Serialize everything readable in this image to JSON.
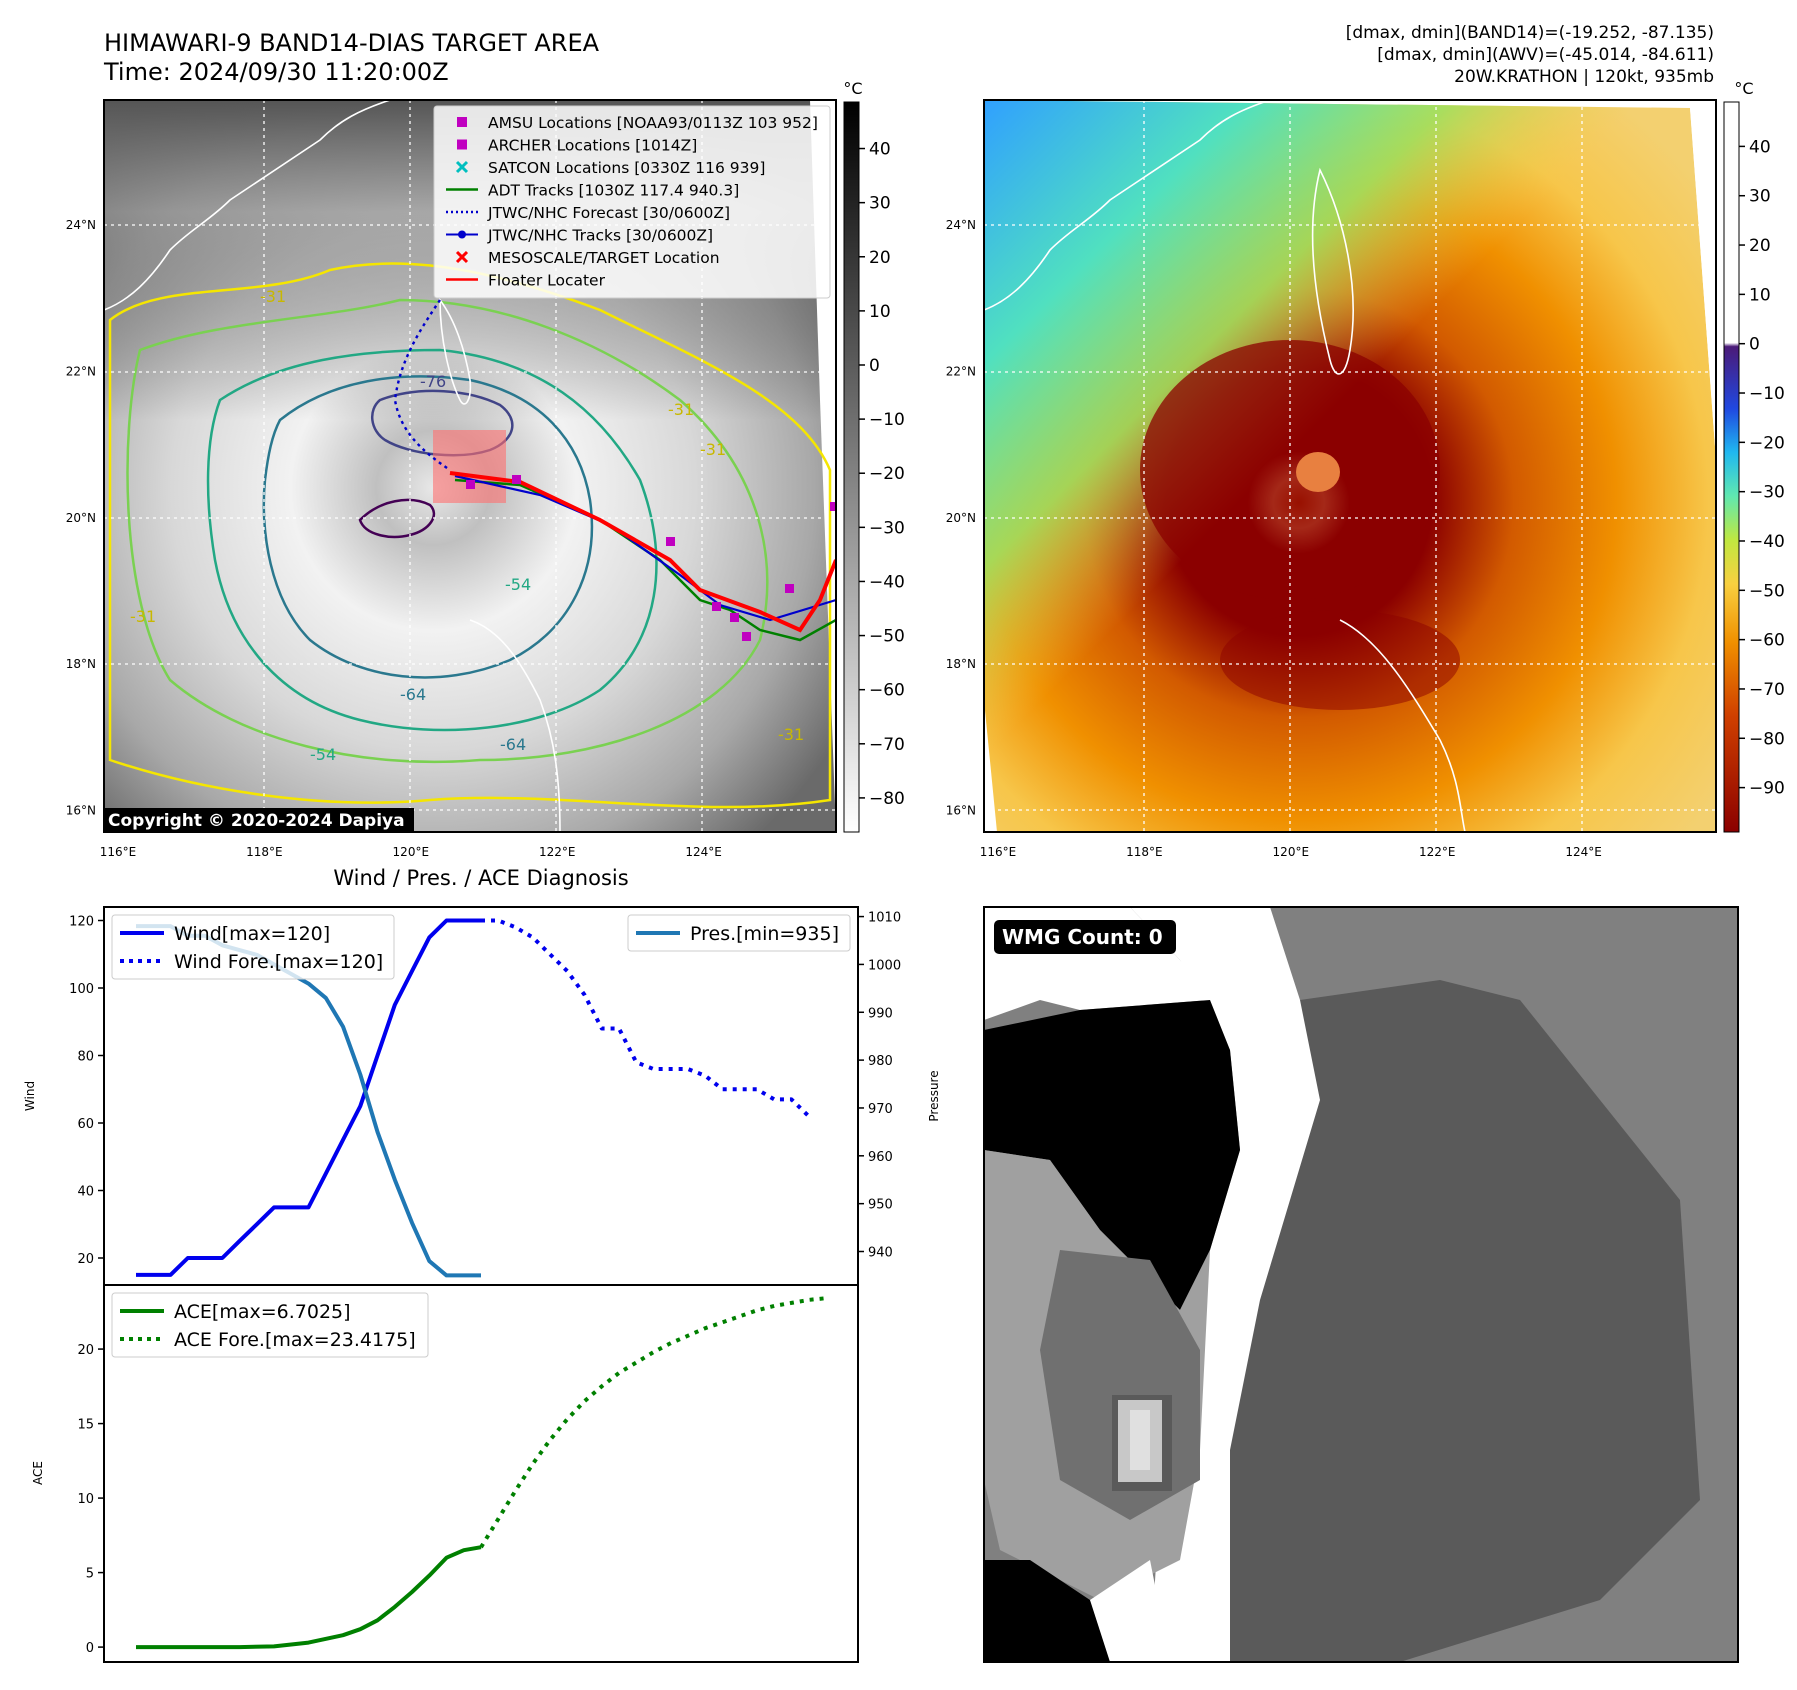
{
  "header": {
    "title_line1": "HIMAWARI-9 BAND14-DIAS TARGET AREA",
    "title_line2": "Time: 2024/09/30 11:20:00Z",
    "info_line1": "[dmax, dmin](BAND14)=(-19.252, -87.135)",
    "info_line2": "[dmax, dmin](AWV)=(-45.014, -84.611)",
    "info_line3": "20W.KRATHON | 120kt, 935mb"
  },
  "maps": {
    "lon_ticks": [
      "116°E",
      "118°E",
      "120°E",
      "122°E",
      "124°E"
    ],
    "lat_ticks": [
      "24°N",
      "22°N",
      "20°N",
      "18°N",
      "16°N"
    ],
    "copyright": "Copyright © 2020-2024 Dapiya",
    "ir_colorbar": {
      "unit": "°C",
      "ticks": [
        "40",
        "30",
        "20",
        "10",
        "0",
        "−10",
        "−20",
        "−30",
        "−40",
        "−50",
        "−60",
        "−70",
        "−80"
      ]
    },
    "awv_colorbar": {
      "unit": "°C",
      "ticks": [
        "40",
        "30",
        "20",
        "10",
        "0",
        "−10",
        "−20",
        "−30",
        "−40",
        "−50",
        "−60",
        "−70",
        "−80",
        "−90"
      ]
    },
    "contour_labels": [
      "-76",
      "-31",
      "-31",
      "-31",
      "-54",
      "-64",
      "-54",
      "-64",
      "-31",
      "-31"
    ],
    "legend": [
      {
        "label": "AMSU Locations [NOAA93/0113Z 103 952]",
        "color": "#c000c0",
        "marker": "square"
      },
      {
        "label": "ARCHER Locations [1014Z]",
        "color": "#c000c0",
        "marker": "square"
      },
      {
        "label": "SATCON Locations [0330Z 116 939]",
        "color": "#00bfbf",
        "marker": "x"
      },
      {
        "label": "ADT Tracks [1030Z 117.4 940.3]",
        "color": "#008000",
        "marker": "line"
      },
      {
        "label": "JTWC/NHC Forecast [30/0600Z]",
        "color": "#0000cc",
        "marker": "dotted"
      },
      {
        "label": "JTWC/NHC Tracks [30/0600Z]",
        "color": "#0000cc",
        "marker": "line-dot"
      },
      {
        "label": "MESOSCALE/TARGET Location",
        "color": "#ff0000",
        "marker": "x"
      },
      {
        "label": "Floater Locater",
        "color": "#ff0000",
        "marker": "line"
      }
    ]
  },
  "wmg": {
    "label": "WMG Count: 0"
  },
  "chart_data": [
    {
      "type": "line",
      "title": "Wind / Pres. / ACE Diagnosis",
      "ylabel": "Wind",
      "ylabel_right": "Pressure",
      "x_range": [
        0,
        40
      ],
      "ylim": [
        12,
        124
      ],
      "ylim_right": [
        933,
        1012
      ],
      "y_ticks": [
        "20",
        "40",
        "60",
        "80",
        "100",
        "120"
      ],
      "y_ticks_right": [
        "940",
        "950",
        "960",
        "970",
        "980",
        "990",
        "1000",
        "1010"
      ],
      "series": [
        {
          "name": "Wind[max=120]",
          "axis": "left",
          "style": "solid",
          "color": "#0000ee",
          "x": [
            0,
            1,
            2,
            3,
            4,
            5,
            6,
            7,
            8,
            9,
            10,
            11,
            12,
            13,
            14,
            15,
            16,
            17,
            18,
            19,
            20
          ],
          "values": [
            15,
            15,
            15,
            20,
            20,
            20,
            25,
            30,
            35,
            35,
            35,
            45,
            55,
            65,
            80,
            95,
            105,
            115,
            120,
            120,
            120
          ]
        },
        {
          "name": "Wind Fore.[max=120]",
          "axis": "left",
          "style": "dotted",
          "color": "#0000ee",
          "x": [
            20,
            21,
            22,
            23,
            24,
            25,
            26,
            27,
            28,
            29,
            30,
            31,
            32,
            33,
            34,
            35,
            36,
            37,
            38,
            39
          ],
          "values": [
            120,
            120,
            118,
            115,
            110,
            105,
            98,
            88,
            88,
            78,
            76,
            76,
            76,
            74,
            70,
            70,
            70,
            67,
            67,
            62
          ]
        },
        {
          "name": "Pres.[min=935]",
          "axis": "right",
          "style": "solid",
          "color": "#1f77b4",
          "x": [
            0,
            1,
            2,
            3,
            4,
            5,
            6,
            7,
            8,
            9,
            10,
            11,
            12,
            13,
            14,
            15,
            16,
            17,
            18,
            19,
            20
          ],
          "values": [
            1008,
            1008,
            1008,
            1006,
            1006,
            1004,
            1003,
            1002,
            1000,
            998,
            996,
            993,
            987,
            977,
            965,
            955,
            946,
            938,
            935,
            935,
            935
          ]
        }
      ]
    },
    {
      "type": "line",
      "ylabel": "ACE",
      "x_range": [
        0,
        40
      ],
      "ylim": [
        -1,
        24.3
      ],
      "y_ticks": [
        "0",
        "5",
        "10",
        "15",
        "20"
      ],
      "series": [
        {
          "name": "ACE[max=6.7025]",
          "style": "solid",
          "color": "#008000",
          "x": [
            0,
            2,
            4,
            6,
            8,
            10,
            12,
            13,
            14,
            15,
            16,
            17,
            18,
            19,
            20
          ],
          "values": [
            0,
            0,
            0,
            0,
            0.05,
            0.3,
            0.8,
            1.2,
            1.8,
            2.7,
            3.7,
            4.8,
            6.0,
            6.5,
            6.7025
          ]
        },
        {
          "name": "ACE Fore.[max=23.4175]",
          "style": "dotted",
          "color": "#008000",
          "x": [
            20,
            21,
            22,
            23,
            24,
            25,
            26,
            27,
            28,
            29,
            30,
            31,
            32,
            33,
            34,
            35,
            36,
            37,
            38,
            39,
            40
          ],
          "values": [
            6.7,
            8.6,
            10.5,
            12.3,
            13.9,
            15.3,
            16.5,
            17.5,
            18.4,
            19.1,
            19.8,
            20.4,
            20.9,
            21.4,
            21.8,
            22.2,
            22.6,
            22.9,
            23.1,
            23.3,
            23.4175
          ]
        }
      ]
    }
  ]
}
